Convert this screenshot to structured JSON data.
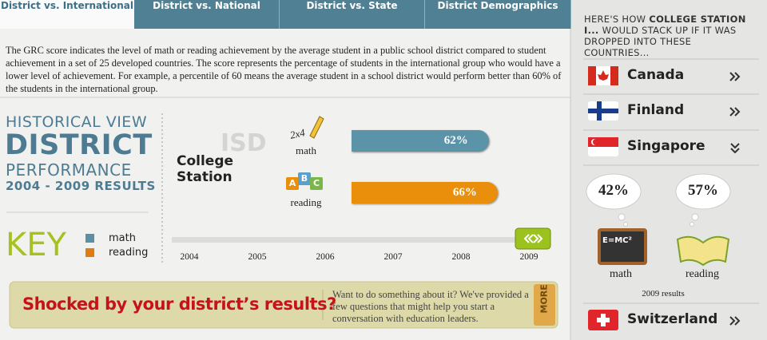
{
  "tabs": [
    "District vs. International",
    "District vs. National",
    "District vs. State",
    "District Demographics"
  ],
  "description": "The GRC score indicates the level of math or reading achievement by the average student in a public school district compared to student achievement in a set of 25 developed countries. The score represents the percentage of students in the international group who would have a lower level of achievement. For example, a percentile of 60 means the average student in a school district would perform better than 60% of the students in the international group.",
  "history": {
    "line1": "HISTORICAL VIEW",
    "line2": "DISTRICT",
    "line3": "PERFORMANCE",
    "line4": "2004 - 2009 RESULTS"
  },
  "key": {
    "title": "KEY",
    "items": [
      {
        "label": "math",
        "color": "#5b8fa5"
      },
      {
        "label": "reading",
        "color": "#e07c12"
      }
    ]
  },
  "district": {
    "type": "ISD",
    "name": "College Station"
  },
  "icons": {
    "pencil": "2x4",
    "blocks": [
      "A",
      "B",
      "C"
    ],
    "chalkboard": "E=MC²"
  },
  "chart_data": {
    "type": "bar",
    "categories": [
      "math",
      "reading"
    ],
    "values": [
      62,
      66
    ],
    "value_labels": [
      "62%",
      "66%"
    ],
    "colors": [
      "#5b93a8",
      "#e98f0b"
    ],
    "xlim": [
      0,
      100
    ]
  },
  "timeline": {
    "years": [
      2004,
      2005,
      2006,
      2007,
      2008,
      2009
    ]
  },
  "banner": {
    "headline": "Shocked by your district’s results?",
    "text": "Want to do something about it? We've provided a few questions that might help you start a conversation with education leaders.",
    "more": "MORE"
  },
  "sidebar": {
    "intro": "HERE'S HOW",
    "highlight": "COLLEGE STATION I...",
    "rest": "WOULD STACK UP IF IT WAS DROPPED INTO THESE COUNTRIES...",
    "countries": [
      "Canada",
      "Finland",
      "Singapore",
      "Switzerland"
    ],
    "results": [
      {
        "subject": "math",
        "score": "42%"
      },
      {
        "subject": "reading",
        "score": "57%"
      }
    ],
    "caption": "2009 results"
  }
}
